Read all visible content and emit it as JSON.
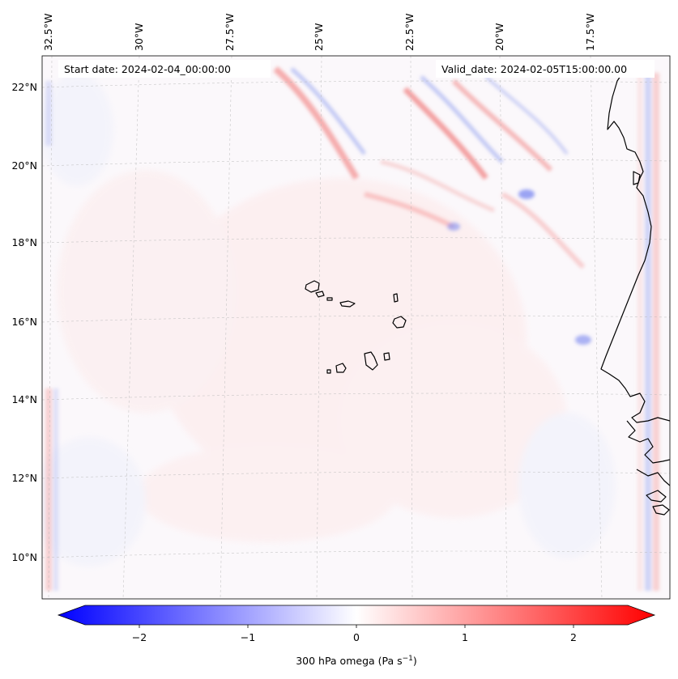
{
  "map": {
    "start_date": "Start date: 2024-02-04_00:00:00",
    "valid_date": "Valid_date: 2024-02-05T15:00:00.00",
    "lat_labels": [
      "22°N",
      "20°N",
      "18°N",
      "16°N",
      "14°N",
      "12°N",
      "10°N"
    ],
    "lon_labels": [
      "32.5°W",
      "30°W",
      "27.5°W",
      "25°W",
      "22.5°W",
      "20°W",
      "17.5°W"
    ]
  },
  "colorbar": {
    "label_prefix": "300 hPa omega (Pa s",
    "label_exponent": "−1",
    "label_suffix": ")",
    "ticks": [
      "−2",
      "−1",
      "0",
      "1",
      "2"
    ],
    "tick_values": [
      -2,
      -1,
      0,
      1,
      2
    ],
    "vmin": -2.5,
    "vmax": 2.5,
    "neg_color": "#0000ff",
    "zero_color": "#ffffff",
    "pos_color": "#ff0000"
  },
  "colors": {
    "coast": "#000000",
    "grid": "#bbbbbb",
    "field_positive": "#ff0000",
    "field_negative": "#0000ff"
  }
}
